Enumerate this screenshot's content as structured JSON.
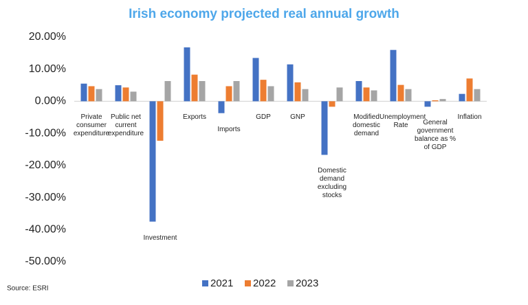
{
  "chart_data": {
    "type": "bar",
    "title": "Irish economy projected real annual growth",
    "source": "Source: ESRI",
    "categories": [
      "Private consumer expenditure",
      "Public net current expenditure",
      "Investment",
      "Exports",
      "Imports",
      "GDP",
      "GNP",
      "Domestic demand excluding stocks",
      "Modified domestic demand",
      "Unemployment Rate",
      "General government balance as % of GDP",
      "Inflation"
    ],
    "series": [
      {
        "name": "2021",
        "color": "#4472c4",
        "values": [
          5.5,
          5.0,
          -37.5,
          16.8,
          -3.7,
          13.5,
          11.5,
          -16.7,
          6.3,
          16.0,
          -1.7,
          2.3
        ]
      },
      {
        "name": "2022",
        "color": "#ed7d31",
        "values": [
          4.7,
          4.3,
          -12.3,
          8.3,
          4.7,
          6.7,
          5.9,
          -1.7,
          4.3,
          5.1,
          0.3,
          7.1
        ]
      },
      {
        "name": "2023",
        "color": "#a5a5a5",
        "values": [
          3.8,
          3.0,
          6.3,
          6.3,
          6.3,
          4.7,
          3.8,
          4.3,
          3.4,
          3.8,
          0.7,
          3.8
        ]
      }
    ],
    "ylim": [
      -50,
      20
    ],
    "yticks": [
      {
        "value": 20,
        "label": "20.00%"
      },
      {
        "value": 10,
        "label": "10.00%"
      },
      {
        "value": 0,
        "label": "0.00%"
      },
      {
        "value": -10,
        "label": "-10.00%"
      },
      {
        "value": -20,
        "label": "-20.00%"
      },
      {
        "value": -30,
        "label": "-30.00%"
      },
      {
        "value": -40,
        "label": "-40.00%"
      },
      {
        "value": -50,
        "label": "-50.00%"
      }
    ],
    "grid": false,
    "legend": "bottom"
  }
}
